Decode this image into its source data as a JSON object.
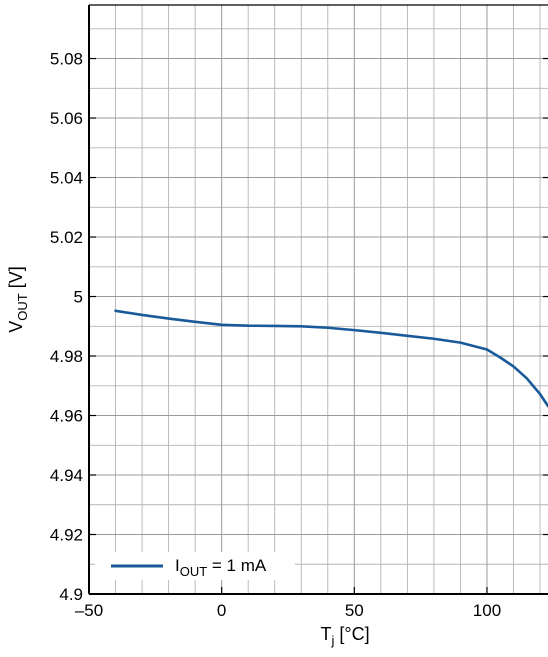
{
  "chart_data": {
    "type": "line",
    "title": "",
    "xlabel": {
      "main": "T",
      "sub": "j",
      "unit": " [°C]"
    },
    "ylabel": {
      "main": "V",
      "sub": "OUT",
      "unit": " [V]"
    },
    "xlim": [
      -50,
      123
    ],
    "ylim": [
      4.9,
      5.098
    ],
    "x_ticks": [
      -50,
      0,
      50,
      100
    ],
    "x_tick_labels": [
      "–50",
      "0",
      "50",
      "100"
    ],
    "y_ticks": [
      4.9,
      4.92,
      4.94,
      4.96,
      4.98,
      5.0,
      5.02,
      5.04,
      5.06,
      5.08
    ],
    "y_tick_labels": [
      "4.9",
      "4.92",
      "4.94",
      "4.96",
      "4.98",
      "5",
      "5.02",
      "5.04",
      "5.06",
      "5.08"
    ],
    "grid": true,
    "legend_position": "bottom-left",
    "series": [
      {
        "name": {
          "main": "I",
          "sub": "OUT",
          "rest": " = 1 mA"
        },
        "color": "#1a5a9a",
        "x": [
          -40,
          -30,
          -20,
          -10,
          0,
          10,
          20,
          30,
          40,
          50,
          60,
          70,
          80,
          90,
          100,
          105,
          110,
          115,
          120,
          123
        ],
        "y": [
          4.9952,
          4.9938,
          4.9926,
          4.9915,
          4.9905,
          4.9902,
          4.9901,
          4.99,
          4.9895,
          4.9887,
          4.9878,
          4.9868,
          4.9858,
          4.9845,
          4.9822,
          4.9795,
          4.9765,
          4.9725,
          4.9672,
          4.9632
        ]
      }
    ]
  }
}
